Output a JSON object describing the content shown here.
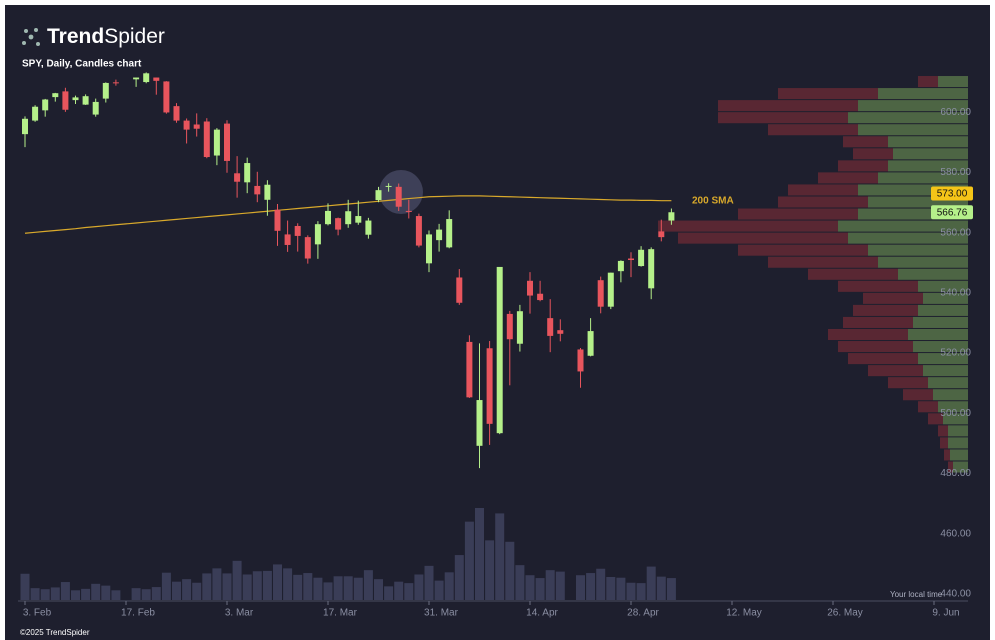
{
  "chart_data": {
    "type": "candlestick",
    "brand": "Trend",
    "brand2": "Spider",
    "title": "SPY, Daily, Candles chart",
    "footer": "©2025 TrendSpider",
    "note": "Your local time",
    "up_color": "#b5f08a",
    "down_color": "#e8555d",
    "volume_color": "#3a3d57",
    "categories": [
      "3. Feb",
      null,
      null,
      null,
      null,
      null,
      null,
      null,
      null,
      null,
      "17. Feb",
      null,
      null,
      null,
      null,
      null,
      null,
      null,
      null,
      null,
      "3. Mar",
      null,
      null,
      null,
      null,
      null,
      null,
      null,
      null,
      null,
      "17. Mar",
      null,
      null,
      null,
      null,
      null,
      null,
      null,
      null,
      null,
      "31. Mar",
      null,
      null,
      null,
      null,
      null,
      null,
      null,
      null,
      null,
      "14. Apr",
      null,
      null,
      null,
      null,
      null,
      null,
      null,
      null,
      null,
      "28. Apr",
      null,
      null,
      null,
      null,
      null,
      null,
      null,
      null,
      null,
      "12. May",
      null,
      null,
      null,
      null,
      null,
      null,
      null,
      null,
      null,
      "26. May",
      null,
      null,
      null,
      null,
      null,
      null,
      null,
      null,
      null,
      "9. Jun",
      null,
      null,
      null
    ],
    "open": [
      592.7,
      597.2,
      600.6,
      605.0,
      606.9,
      604.0,
      602.5,
      599.2,
      604.5,
      609.9,
      null,
      610.9,
      610.0,
      611.5,
      610.2,
      602.0,
      597.2,
      595.9,
      596.9,
      585.6,
      596.2,
      579.7,
      576.7,
      575.5,
      570.9,
      567.6,
      559.4,
      562.2,
      558.5,
      556.1,
      562.8,
      564.8,
      562.8,
      563.3,
      559.3,
      570.8,
      575.3,
      575.2,
      567.2,
      565.5,
      549.8,
      557.5,
      555.1,
      545.1,
      523.7,
      489.2,
      521.6,
      493.4,
      533.0,
      523.1,
      544.0,
      539.7,
      531.6,
      527.6,
      null,
      521.2,
      519.1,
      544.2,
      535.4,
      547.2,
      551.4,
      548.9,
      541.5,
      560.4,
      564.0,
      null,
      null,
      null,
      null,
      null,
      null,
      null,
      null,
      null,
      null,
      null,
      null,
      null,
      null,
      null,
      null,
      null,
      null,
      null,
      null,
      null,
      null,
      null,
      null,
      null,
      null,
      null,
      null,
      null
    ],
    "high": [
      598.6,
      602.3,
      604.4,
      606.4,
      608.1,
      605.5,
      605.9,
      604.5,
      609.9,
      610.8,
      null,
      611.5,
      613.2,
      611.5,
      610.3,
      603.0,
      597.9,
      599.6,
      598.0,
      594.7,
      597.3,
      585.4,
      584.9,
      580.2,
      577.4,
      569.5,
      564.0,
      563.1,
      559.1,
      563.8,
      569.7,
      565.0,
      570.9,
      570.6,
      564.9,
      575.2,
      576.4,
      576.3,
      570.9,
      566.3,
      560.7,
      562.9,
      567.4,
      547.9,
      525.9,
      523.2,
      524.0,
      548.6,
      534.0,
      536.0,
      546.9,
      544.0,
      537.9,
      531.2,
      null,
      521.7,
      531.6,
      545.4,
      546.7,
      550.8,
      553.5,
      555.5,
      555.1,
      564.3,
      568.0,
      null,
      null,
      null,
      null,
      null,
      null,
      null,
      null,
      null,
      null,
      null,
      null,
      null,
      null,
      null,
      null,
      null,
      null,
      null,
      null,
      null,
      null,
      null,
      null,
      null,
      null,
      null,
      null,
      null
    ],
    "low": [
      588.4,
      596.8,
      598.5,
      603.5,
      600.1,
      602.7,
      602.4,
      598.5,
      603.2,
      608.8,
      null,
      608.4,
      609.6,
      605.8,
      599.5,
      596.5,
      589.6,
      591.9,
      584.7,
      582.4,
      579.9,
      571.6,
      573.1,
      570.1,
      565.6,
      555.6,
      553.6,
      553.7,
      549.7,
      551.3,
      562.4,
      559.1,
      561.6,
      562.6,
      558.0,
      570.1,
      573.6,
      567.2,
      564.7,
      555.1,
      546.9,
      553.7,
      554.8,
      536.0,
      505.1,
      481.8,
      489.5,
      493.1,
      509.3,
      520.5,
      533.1,
      537.2,
      520.3,
      523.9,
      null,
      508.5,
      518.9,
      533.2,
      534.6,
      543.5,
      545.2,
      548.7,
      537.9,
      557.1,
      562.6,
      null,
      null,
      null,
      null,
      null,
      null,
      null,
      null,
      null,
      null,
      null,
      null,
      null,
      null,
      null,
      null,
      null,
      null,
      null,
      null,
      null,
      null,
      null,
      null,
      null,
      null,
      null,
      null,
      null
    ],
    "close": [
      597.8,
      601.8,
      604.2,
      606.3,
      600.8,
      604.9,
      605.3,
      603.4,
      609.7,
      609.7,
      null,
      611.5,
      612.9,
      610.4,
      599.9,
      597.2,
      594.2,
      594.5,
      585.1,
      594.2,
      583.8,
      576.9,
      583.1,
      572.7,
      575.9,
      560.6,
      555.9,
      558.9,
      551.4,
      562.8,
      567.2,
      561.0,
      567.1,
      565.5,
      564.0,
      574.1,
      575.5,
      568.6,
      567.1,
      555.7,
      559.4,
      561.0,
      564.5,
      536.7,
      505.3,
      504.4,
      496.5,
      548.6,
      524.6,
      533.9,
      539.1,
      537.6,
      525.7,
      526.4,
      null,
      513.9,
      527.3,
      535.4,
      546.7,
      550.6,
      550.9,
      554.3,
      554.5,
      558.5,
      566.76,
      null,
      null,
      null,
      null,
      null,
      null,
      null,
      null,
      null,
      null,
      null,
      null,
      null,
      null,
      null,
      null,
      null,
      null,
      null,
      null,
      null,
      null,
      null,
      null,
      null,
      null,
      null,
      null,
      null
    ],
    "volume": [
      73,
      33,
      30,
      35,
      50,
      27,
      31,
      45,
      40,
      27,
      null,
      33,
      30,
      36,
      76,
      51,
      58,
      48,
      74,
      88,
      74,
      109,
      71,
      80,
      81,
      99,
      88,
      70,
      75,
      62,
      49,
      66,
      66,
      62,
      83,
      58,
      38,
      51,
      47,
      71,
      95,
      54,
      77,
      125,
      218,
      256,
      166,
      241,
      162,
      97,
      69,
      61,
      83,
      79,
      null,
      69,
      75,
      87,
      64,
      62,
      48,
      47,
      93,
      65,
      61,
      null,
      null,
      null,
      null,
      null,
      null,
      null,
      null,
      null,
      null,
      null,
      null,
      null,
      null,
      null,
      null,
      null,
      null,
      null,
      null,
      null,
      null,
      null,
      null,
      null,
      null,
      null,
      null,
      null
    ],
    "sma": {
      "name": "200 SMA",
      "color": "#d9a92b",
      "values": [
        559.8,
        560.1,
        560.4,
        560.7,
        561.0,
        561.3,
        561.7,
        562.0,
        562.3,
        562.6,
        562.9,
        563.2,
        563.5,
        563.8,
        564.1,
        564.4,
        564.7,
        565.0,
        565.3,
        565.6,
        565.9,
        566.2,
        566.5,
        566.8,
        567.1,
        567.4,
        567.7,
        568.0,
        568.3,
        568.6,
        568.9,
        569.2,
        569.5,
        569.8,
        570.1,
        570.4,
        570.7,
        571.0,
        571.3,
        571.6,
        571.9,
        572.0,
        572.1,
        572.2,
        572.2,
        572.2,
        572.1,
        572.0,
        571.9,
        571.8,
        571.7,
        571.6,
        571.5,
        571.4,
        571.3,
        571.2,
        571.1,
        571.0,
        570.9,
        570.8,
        570.8,
        570.7,
        570.7,
        570.6,
        570.6,
        null,
        null,
        null,
        null,
        null,
        null,
        null,
        null,
        null,
        null,
        null,
        null,
        null,
        null,
        null,
        null,
        null,
        null,
        null,
        null,
        null,
        null,
        null,
        null,
        null,
        null,
        null,
        null,
        null
      ]
    },
    "price_labels": [
      {
        "value": 573,
        "label": "573.00",
        "color": "#f5c518"
      },
      {
        "value": 566.76,
        "label": "566.76",
        "color": "#b5f08a"
      }
    ],
    "profile": {
      "up_color": "#5e7d4c",
      "down_color": "#6e2b36",
      "bins": [
        480,
        484,
        488,
        492,
        496,
        500,
        504,
        508,
        512,
        516,
        520,
        524,
        528,
        532,
        536,
        540,
        544,
        548,
        552,
        556,
        560,
        564,
        568,
        572,
        576,
        580,
        584,
        588,
        592,
        596,
        600,
        604,
        608,
        612
      ],
      "up": [
        15,
        18,
        20,
        20,
        25,
        30,
        35,
        40,
        45,
        50,
        55,
        60,
        55,
        50,
        45,
        50,
        70,
        90,
        100,
        120,
        130,
        110,
        100,
        110,
        90,
        80,
        75,
        80,
        110,
        120,
        110,
        90,
        30
      ],
      "down": [
        5,
        6,
        8,
        10,
        15,
        20,
        30,
        40,
        55,
        70,
        75,
        80,
        70,
        65,
        60,
        80,
        90,
        110,
        130,
        170,
        180,
        120,
        90,
        70,
        60,
        50,
        40,
        45,
        90,
        130,
        140,
        100,
        20
      ]
    },
    "ylim": [
      438,
      614
    ],
    "yticks": [
      {
        "value": 440,
        "label": "440.00"
      },
      {
        "value": 460,
        "label": "460.00"
      },
      {
        "value": 480,
        "label": "480.00"
      },
      {
        "value": 500,
        "label": "500.00"
      },
      {
        "value": 520,
        "label": "520.00"
      },
      {
        "value": 540,
        "label": "540.00"
      },
      {
        "value": 560,
        "label": "560.00"
      },
      {
        "value": 580,
        "label": "580.00"
      },
      {
        "value": 600,
        "label": "600.00"
      }
    ]
  }
}
